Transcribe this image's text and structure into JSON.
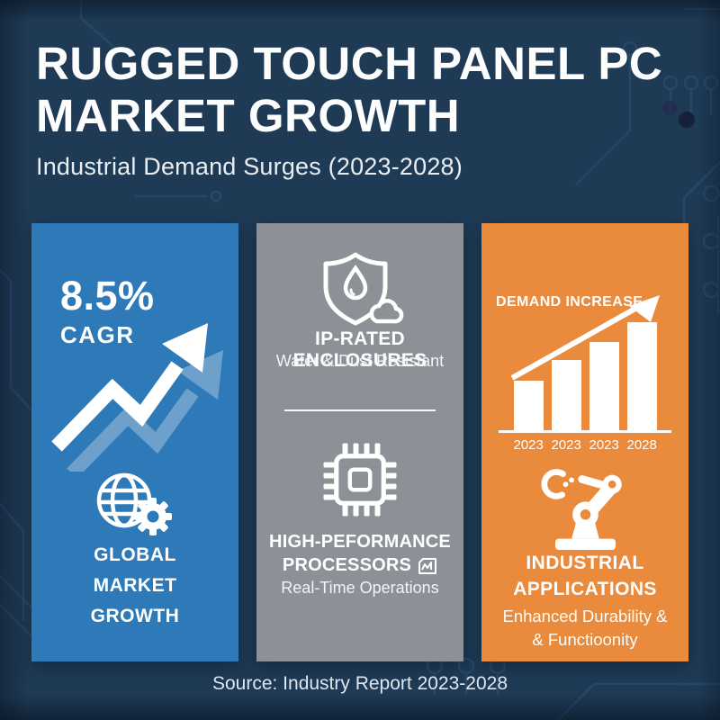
{
  "header": {
    "title_line1": "RUGGED TOUCH PANEL PC",
    "title_line2": "MARKET GROWTH",
    "subtitle": "Industrial Demand Surges (2023-2028)"
  },
  "panels": {
    "market": {
      "color": "#2e79b7",
      "stat_value": "8.5%",
      "stat_label": "CAGR",
      "trend_icon": "zigzag-up-arrow-icon",
      "icon": "globe-gear-icon",
      "caption_lines": [
        "GLOBAL",
        "MARKET",
        "GROWTH"
      ]
    },
    "enclosures": {
      "color": "#8b9197",
      "icon": "shield-droplet-icon",
      "title": "IP-RATED ENCLOSURES",
      "subtitle": "Water & Dust Resistant",
      "icon2": "cpu-chip-icon",
      "title2_line1": "HIGH-PEFORMANCE",
      "title2_line2": "PROCESSORS",
      "title2_suffix_icon": "mini-chart-icon",
      "subtitle2": "Real-Time Operations"
    },
    "demand": {
      "color": "#e98a3c",
      "chart_label": "DEMAND INCREASE",
      "chart_arrow_icon": "diagonal-up-arrow-icon",
      "icon": "robot-arm-icon",
      "caption_line1": "INDUSTRIAL",
      "caption_line2": "APPLICATIONS",
      "subcaption_line1": "Enhanced Durability &",
      "subcaption_line2": "& Functioonity"
    }
  },
  "chart_data": {
    "type": "bar",
    "title": "DEMAND INCREASE",
    "categories": [
      "2023",
      "2023",
      "2023",
      "2028"
    ],
    "values": [
      46,
      65,
      82,
      100
    ],
    "value_note": "relative bar heights, no y-axis shown",
    "bar_color": "#ffffff",
    "grid": false,
    "annotations": [
      "upward trend arrow overlay"
    ]
  },
  "footer": {
    "source": "Source: Industry Report 2023-2028"
  },
  "colors": {
    "background": "#1e3a55",
    "panel_blue": "#2e79b7",
    "panel_gray": "#8b9197",
    "panel_orange": "#e98a3c",
    "circuit_line": "#2b4c6d",
    "text": "#ffffff"
  }
}
